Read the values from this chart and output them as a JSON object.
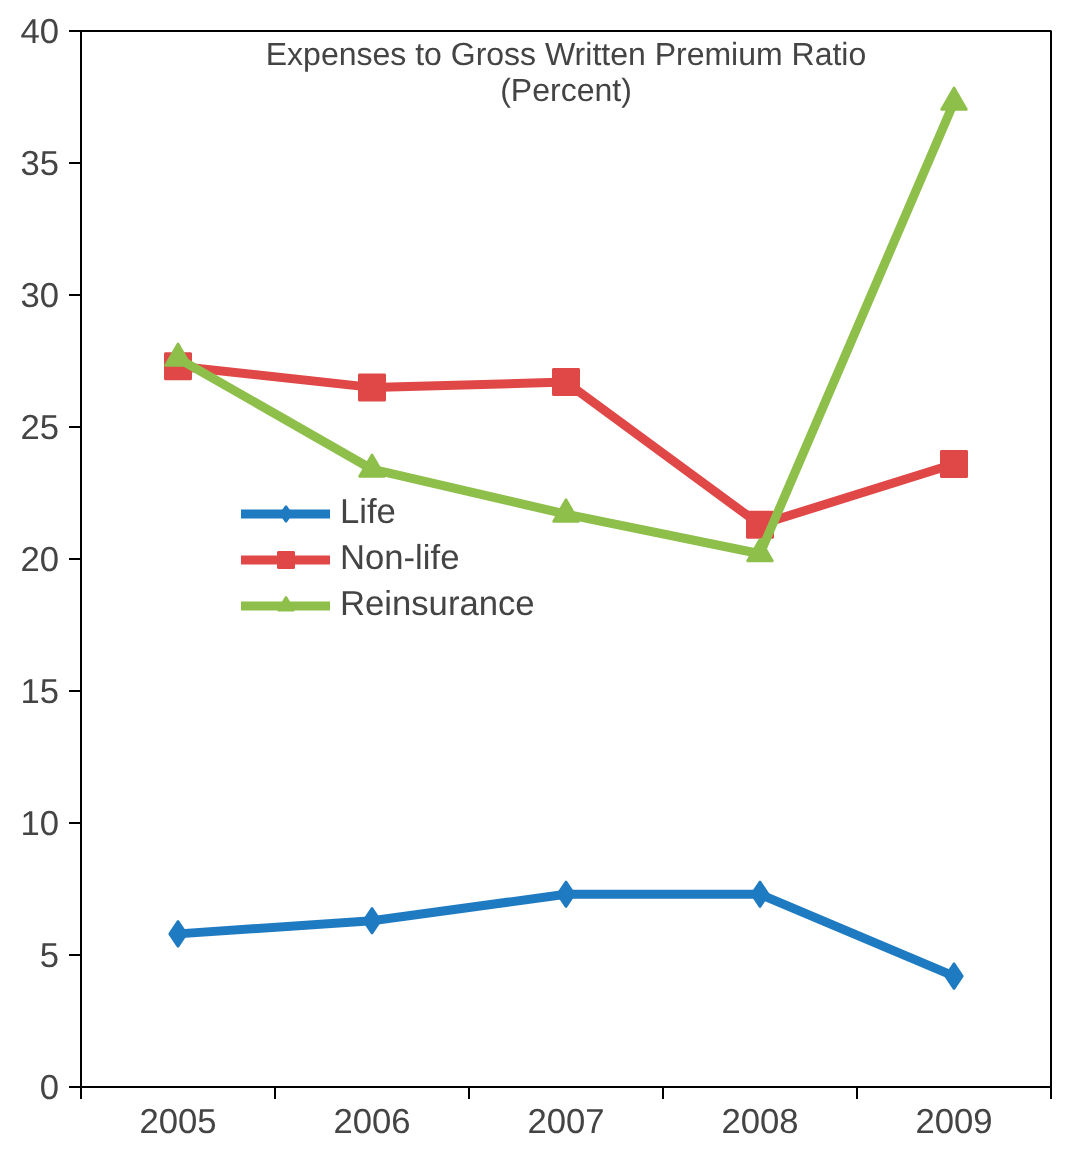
{
  "chart_data": {
    "type": "line",
    "title": "Expenses to Gross Written Premium Ratio",
    "subtitle": "(Percent)",
    "categories": [
      "2005",
      "2006",
      "2007",
      "2008",
      "2009"
    ],
    "series": [
      {
        "name": "Life",
        "color": "#1f7bc1",
        "marker": "diamond",
        "values": [
          5.8,
          6.3,
          7.3,
          7.3,
          4.2
        ]
      },
      {
        "name": "Non-life",
        "color": "#e04848",
        "marker": "square",
        "values": [
          27.3,
          26.5,
          26.7,
          21.3,
          23.6
        ]
      },
      {
        "name": "Reinsurance",
        "color": "#8dbf4a",
        "marker": "triangle",
        "values": [
          27.6,
          23.4,
          21.7,
          20.2,
          37.3
        ]
      }
    ],
    "ylim": [
      0,
      40
    ],
    "yticks": [
      0,
      5,
      10,
      15,
      20,
      25,
      30,
      35,
      40
    ],
    "grid": false,
    "legend": "center left",
    "line_style": "solid"
  }
}
